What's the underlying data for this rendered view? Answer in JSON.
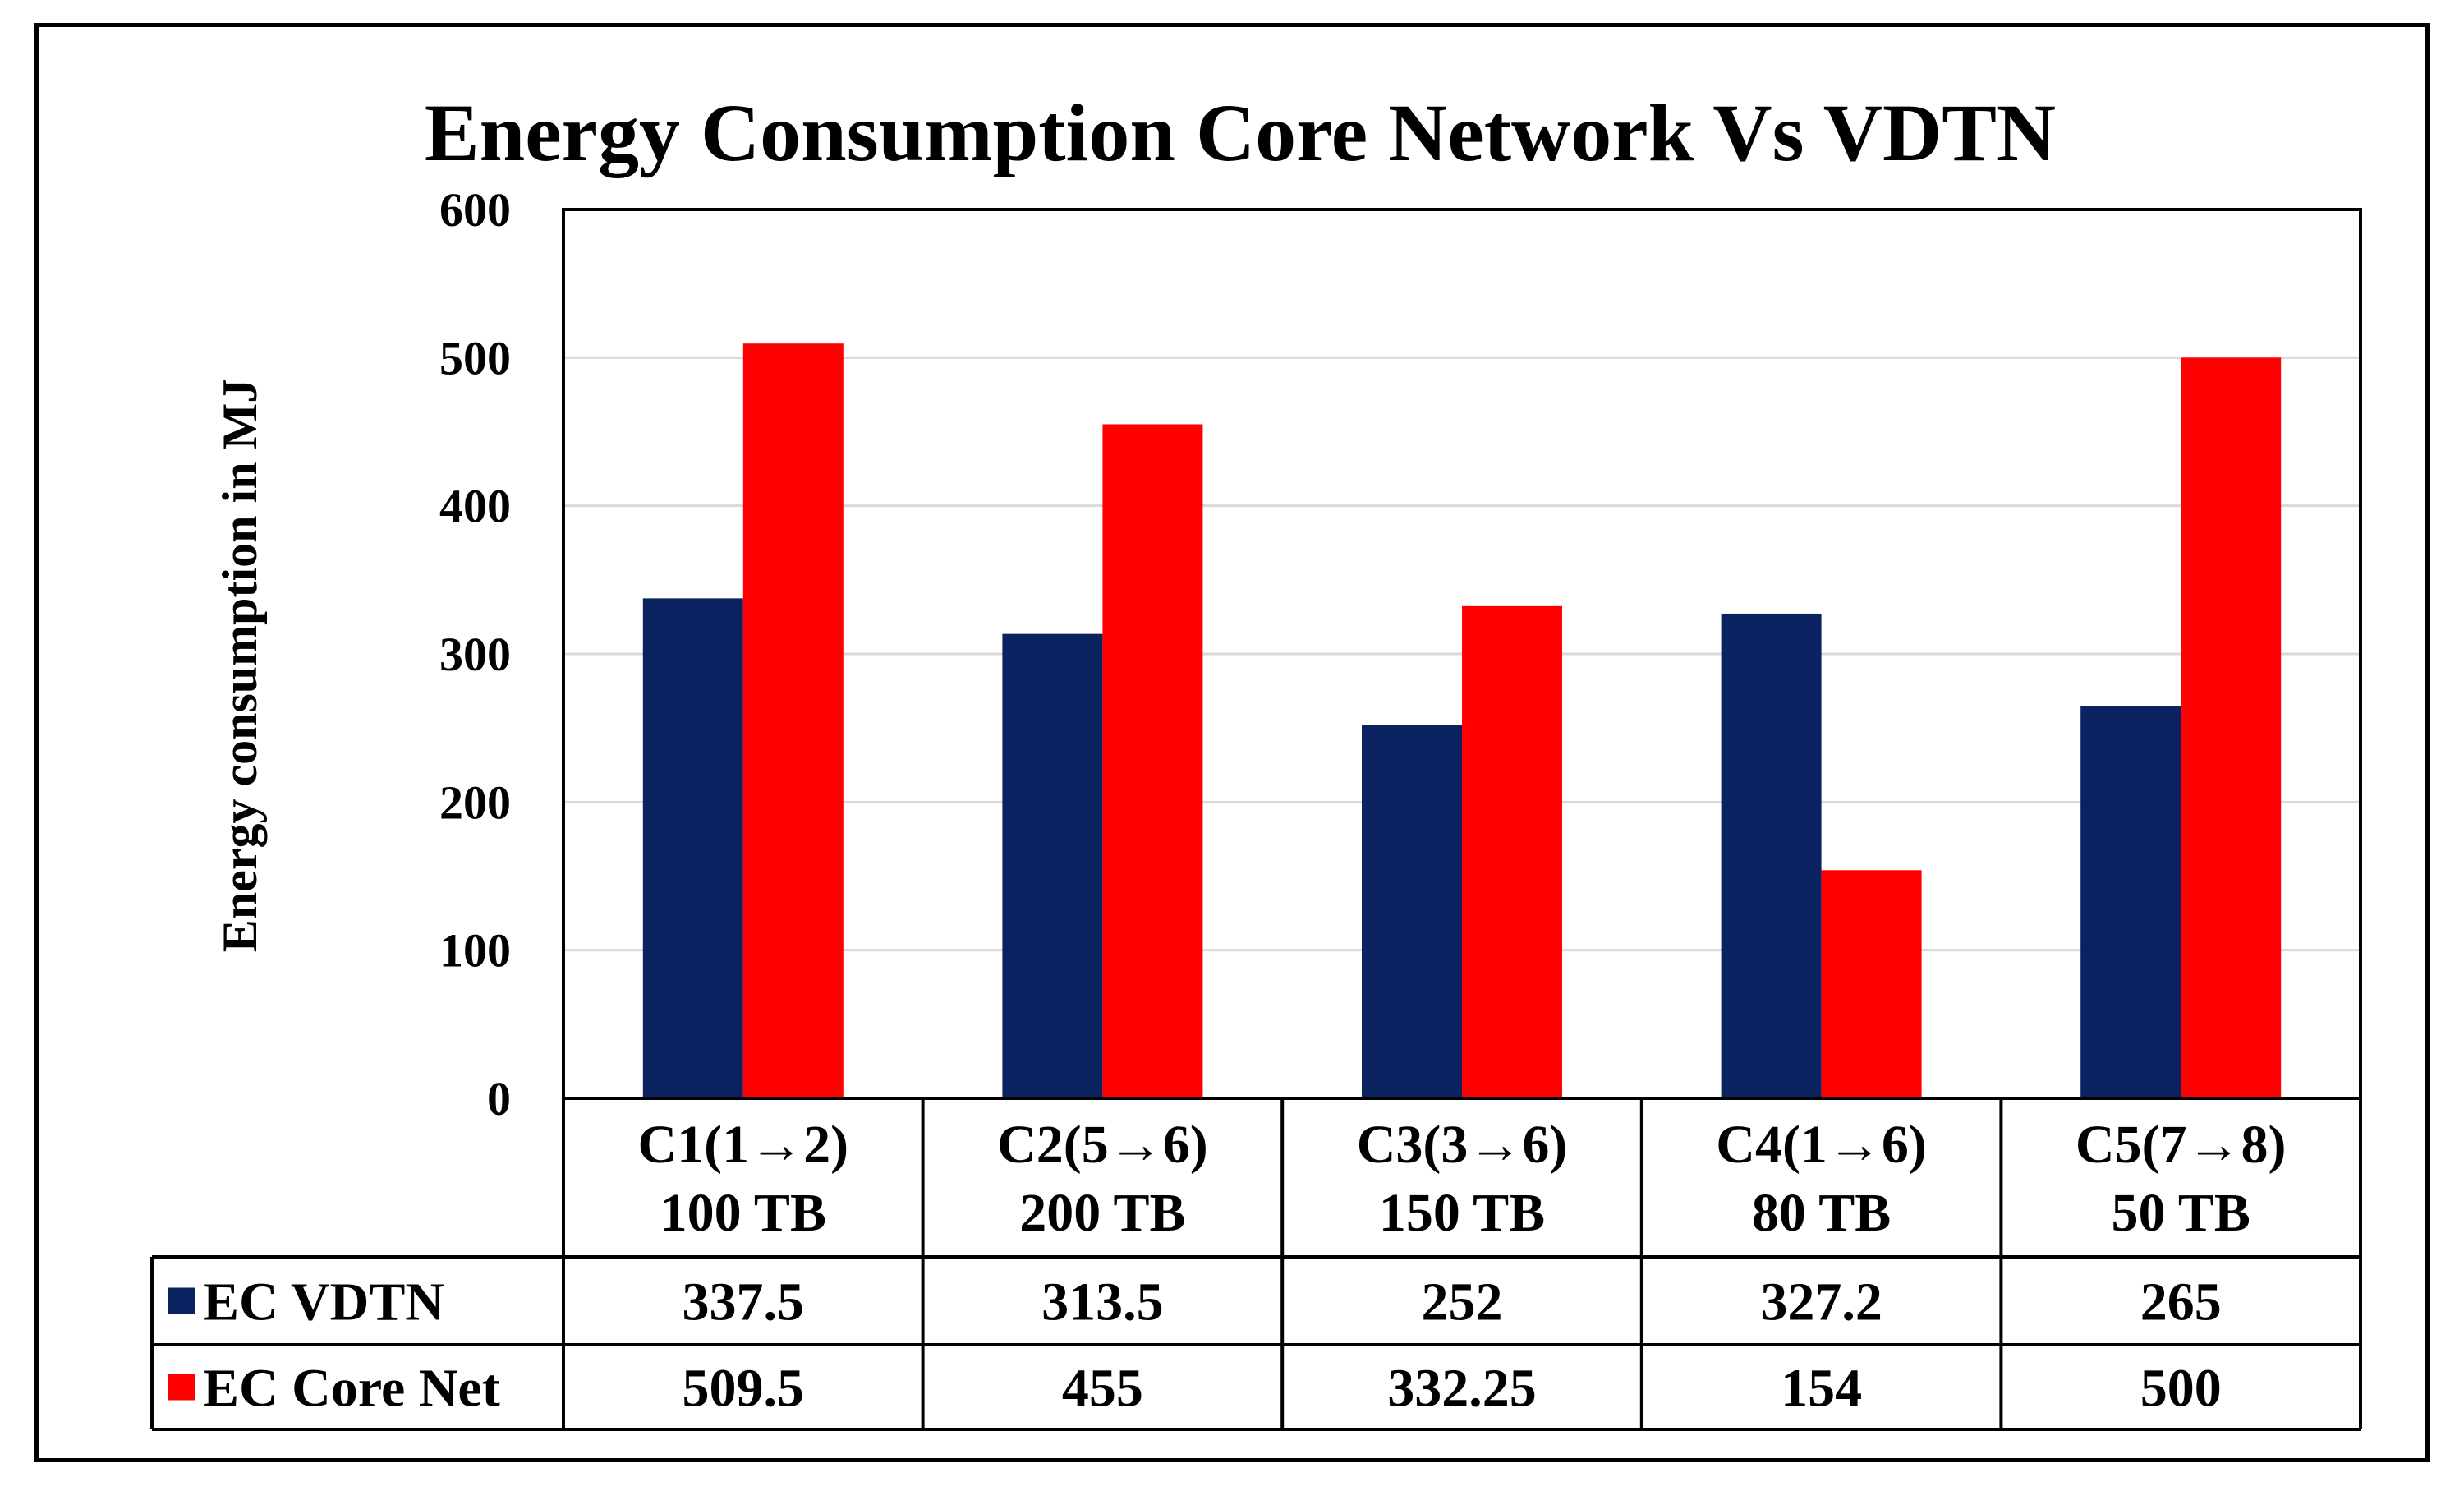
{
  "chart_data": {
    "type": "bar",
    "title": "Energy Consumption Core Network Vs VDTN",
    "ylabel": "Energy  consumption  in  MJ",
    "xlabel": "",
    "ylim": [
      0,
      600
    ],
    "yticks": [
      0,
      100,
      200,
      300,
      400,
      500,
      600
    ],
    "grid": true,
    "legend": "table-left",
    "categories": [
      {
        "line1": "C1(1→2)",
        "line2": "100 TB"
      },
      {
        "line1": "C2(5→6)",
        "line2": "200 TB"
      },
      {
        "line1": "C3(3→6)",
        "line2": "150 TB"
      },
      {
        "line1": "C4(1→6)",
        "line2": "80 TB"
      },
      {
        "line1": "C5(7→8)",
        "line2": "50 TB"
      }
    ],
    "series": [
      {
        "name": "EC VDTN",
        "color": "#0b2260",
        "values": [
          337.5,
          313.5,
          252,
          327.2,
          265
        ],
        "labels": [
          "337.5",
          "313.5",
          "252",
          "327.2",
          "265"
        ]
      },
      {
        "name": "EC Core Net",
        "color": "#ff0000",
        "values": [
          509.5,
          455,
          332.25,
          154,
          500
        ],
        "labels": [
          "509.5",
          "455",
          "332.25",
          "154",
          "500"
        ]
      }
    ]
  }
}
